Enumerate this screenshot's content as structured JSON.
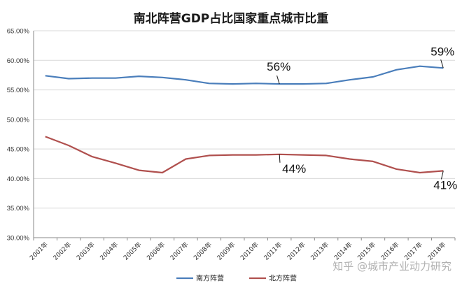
{
  "chart_data": {
    "type": "line",
    "title": "南北阵营GDP占比国家重点城市比重",
    "xlabel": "",
    "ylabel": "",
    "categories": [
      "2001年",
      "2002年",
      "2003年",
      "2004年",
      "2005年",
      "2006年",
      "2007年",
      "2008年",
      "2009年",
      "2010年",
      "2011年",
      "2012年",
      "2013年",
      "2014年",
      "2015年",
      "2016年",
      "2017年",
      "2018年"
    ],
    "ylim": [
      30,
      65
    ],
    "yticks": [
      "30.00%",
      "35.00%",
      "40.00%",
      "45.00%",
      "50.00%",
      "55.00%",
      "60.00%",
      "65.00%"
    ],
    "grid": true,
    "legend_position": "bottom",
    "series": [
      {
        "name": "南方阵营",
        "color": "#4a7ebb",
        "values": [
          57.4,
          56.9,
          57.0,
          57.0,
          57.3,
          57.1,
          56.7,
          56.1,
          56.0,
          56.1,
          56.0,
          56.0,
          56.1,
          56.7,
          57.2,
          58.4,
          59.0,
          58.7
        ]
      },
      {
        "name": "北方阵营",
        "color": "#b0504e",
        "values": [
          47.1,
          45.6,
          43.7,
          42.6,
          41.4,
          41.0,
          43.3,
          43.9,
          44.0,
          44.0,
          44.1,
          44.0,
          43.9,
          43.3,
          42.9,
          41.6,
          41.0,
          41.3
        ]
      }
    ],
    "annotations": [
      {
        "text": "56%",
        "series": 0,
        "index": 10
      },
      {
        "text": "44%",
        "series": 1,
        "index": 10
      },
      {
        "text": "59%",
        "series": 0,
        "index": 17
      },
      {
        "text": "41%",
        "series": 1,
        "index": 17
      }
    ]
  },
  "watermark": "知乎 @城市产业动力研究"
}
